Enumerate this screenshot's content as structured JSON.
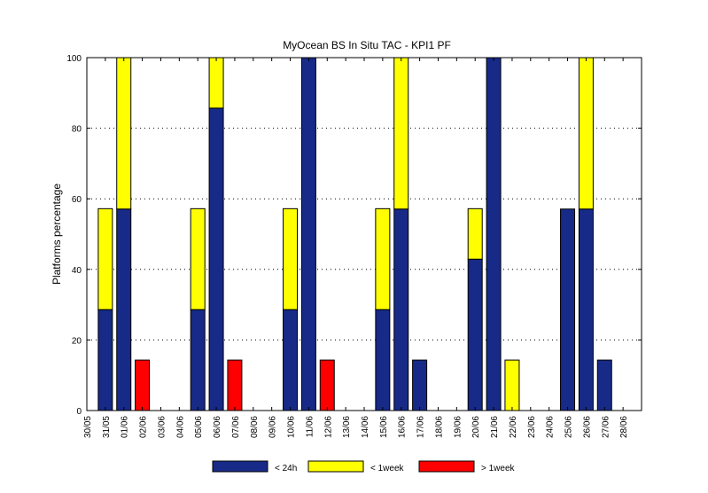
{
  "chart_data": {
    "type": "bar",
    "stacked": true,
    "title": "MyOcean  BS In Situ TAC - KPI1  PF",
    "xlabel": "",
    "ylabel": "Platforms percentage",
    "ylim": [
      0,
      100
    ],
    "yticks": [
      0,
      20,
      40,
      60,
      80,
      100
    ],
    "grid": true,
    "legend_position": "bottom",
    "categories": [
      "30/05",
      "31/05",
      "01/06",
      "02/06",
      "03/06",
      "04/06",
      "05/06",
      "06/06",
      "07/06",
      "08/06",
      "09/06",
      "10/06",
      "11/06",
      "12/06",
      "13/06",
      "14/06",
      "15/06",
      "16/06",
      "17/06",
      "18/06",
      "19/06",
      "20/06",
      "21/06",
      "22/06",
      "23/06",
      "24/06",
      "25/06",
      "26/06",
      "27/06",
      "28/06"
    ],
    "series": [
      {
        "name": "< 24h",
        "color": "#172a87",
        "values": [
          0,
          28.6,
          57.1,
          0,
          0,
          0,
          28.6,
          85.7,
          0,
          0,
          0,
          28.6,
          100,
          0,
          0,
          0,
          28.6,
          57.1,
          14.3,
          0,
          0,
          42.9,
          100,
          0,
          0,
          0,
          57.1,
          57.1,
          14.3,
          0
        ]
      },
      {
        "name": "< 1week",
        "color": "#ffff00",
        "values": [
          0,
          28.6,
          42.9,
          0,
          0,
          0,
          28.6,
          14.3,
          0,
          0,
          0,
          28.6,
          0,
          0,
          0,
          0,
          28.6,
          42.9,
          0,
          0,
          0,
          14.3,
          0,
          14.3,
          0,
          0,
          0,
          42.9,
          0,
          0
        ]
      },
      {
        "name": "> 1week",
        "color": "#ff0000",
        "values": [
          0,
          0,
          0,
          14.3,
          0,
          0,
          0,
          0,
          14.3,
          0,
          0,
          0,
          0,
          14.3,
          0,
          0,
          0,
          0,
          0,
          0,
          0,
          0,
          0,
          0,
          0,
          0,
          0,
          0,
          0,
          0
        ]
      }
    ]
  }
}
